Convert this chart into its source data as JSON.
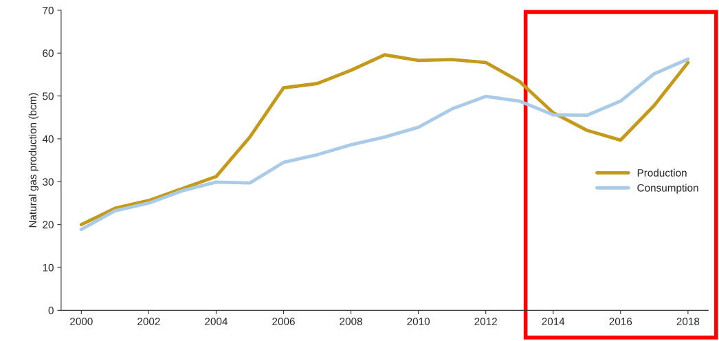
{
  "chart_data": {
    "type": "line",
    "ylabel": "Natural gas production (bcm)",
    "x": [
      2000,
      2001,
      2002,
      2003,
      2004,
      2005,
      2006,
      2007,
      2008,
      2009,
      2010,
      2011,
      2012,
      2013,
      2014,
      2015,
      2016,
      2017,
      2018
    ],
    "series": [
      {
        "name": "Production",
        "color": "#c49a1c",
        "values": [
          20,
          23.8,
          25.6,
          28.4,
          31.2,
          40.4,
          51.9,
          52.9,
          56,
          59.6,
          58.3,
          58.5,
          57.8,
          53.4,
          46.1,
          42,
          39.7,
          47.8,
          57.8
        ]
      },
      {
        "name": "Consumption",
        "color": "#a9cbe8",
        "values": [
          18.9,
          23.2,
          25,
          27.9,
          29.9,
          29.7,
          34.5,
          36.3,
          38.6,
          40.4,
          42.7,
          47,
          49.9,
          48.8,
          45.6,
          45.5,
          48.8,
          55.2,
          58.6
        ]
      }
    ],
    "xlim": [
      1999.4,
      2018.6
    ],
    "xticks": [
      2000,
      2002,
      2004,
      2006,
      2008,
      2010,
      2012,
      2014,
      2016,
      2018
    ],
    "ylim": [
      0,
      70
    ],
    "yticks": [
      0,
      10,
      20,
      30,
      40,
      50,
      60,
      70
    ],
    "grid": false,
    "legend": "right",
    "marker": "none",
    "line_style": "solid"
  }
}
